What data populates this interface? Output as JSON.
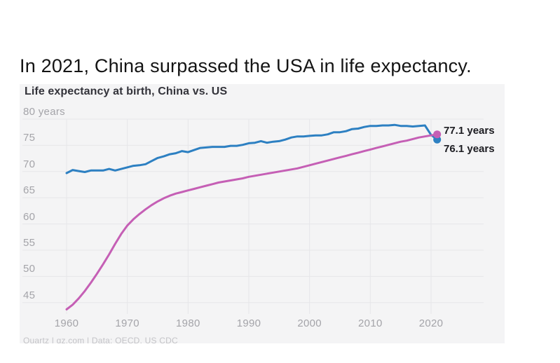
{
  "page": {
    "headline": "In 2021, China surpassed the USA in life expectancy."
  },
  "chart": {
    "title": "Life expectancy at birth, China vs. US",
    "y_axis_top_label": "80 years",
    "credit": "Quartz | qz.com | Data: OECD, US CDC",
    "end_labels": {
      "china": "77.1 years",
      "us": "76.1 years"
    },
    "colors": {
      "china_line": "#c55fb5",
      "us_line": "#2d80c2",
      "card_background": "#f4f4f5",
      "gridline": "#e6e6e9",
      "axis_text": "#a4a4a9",
      "end_label_text": "#1c1c21"
    }
  },
  "chart_data": {
    "type": "line",
    "title": "Life expectancy at birth, China vs. US",
    "xlabel": "",
    "ylabel": "years",
    "xticks": [
      1960,
      1970,
      1980,
      1990,
      2000,
      2010,
      2020
    ],
    "yticks": [
      45,
      50,
      55,
      60,
      65,
      70,
      75,
      80
    ],
    "ylim": [
      42.8,
      81
    ],
    "xlim": [
      1952.3,
      2027
    ],
    "grid": true,
    "legend_position": "end-of-line value labels",
    "x": [
      1960,
      1961,
      1962,
      1963,
      1964,
      1965,
      1966,
      1967,
      1968,
      1969,
      1970,
      1971,
      1972,
      1973,
      1974,
      1975,
      1976,
      1977,
      1978,
      1979,
      1980,
      1981,
      1982,
      1983,
      1984,
      1985,
      1986,
      1987,
      1988,
      1989,
      1990,
      1991,
      1992,
      1993,
      1994,
      1995,
      1996,
      1997,
      1998,
      1999,
      2000,
      2001,
      2002,
      2003,
      2004,
      2005,
      2006,
      2007,
      2008,
      2009,
      2010,
      2011,
      2012,
      2013,
      2014,
      2015,
      2016,
      2017,
      2018,
      2019,
      2020,
      2021
    ],
    "series": [
      {
        "name": "US",
        "color": "#2d80c2",
        "end_value": 76.1,
        "end_label": "76.1 years",
        "values": [
          69.7,
          70.3,
          70.1,
          69.9,
          70.2,
          70.2,
          70.2,
          70.5,
          70.2,
          70.5,
          70.8,
          71.1,
          71.2,
          71.4,
          72.0,
          72.6,
          72.9,
          73.3,
          73.5,
          73.9,
          73.7,
          74.1,
          74.5,
          74.6,
          74.7,
          74.7,
          74.7,
          74.9,
          74.9,
          75.1,
          75.4,
          75.5,
          75.8,
          75.5,
          75.7,
          75.8,
          76.1,
          76.5,
          76.7,
          76.7,
          76.8,
          76.9,
          76.9,
          77.1,
          77.5,
          77.5,
          77.7,
          78.1,
          78.2,
          78.5,
          78.7,
          78.7,
          78.8,
          78.8,
          78.9,
          78.7,
          78.7,
          78.6,
          78.7,
          78.8,
          77.0,
          76.1
        ]
      },
      {
        "name": "China",
        "color": "#c55fb5",
        "end_value": 77.1,
        "end_label": "77.1 years",
        "values": [
          43.7,
          44.6,
          45.8,
          47.2,
          48.8,
          50.5,
          52.3,
          54.2,
          56.2,
          58.1,
          59.7,
          60.9,
          61.9,
          62.8,
          63.6,
          64.3,
          64.9,
          65.4,
          65.8,
          66.1,
          66.4,
          66.7,
          67.0,
          67.3,
          67.6,
          67.9,
          68.1,
          68.3,
          68.5,
          68.7,
          69.0,
          69.2,
          69.4,
          69.6,
          69.8,
          70.0,
          70.2,
          70.4,
          70.6,
          70.9,
          71.2,
          71.5,
          71.8,
          72.1,
          72.4,
          72.7,
          73.0,
          73.3,
          73.6,
          73.9,
          74.2,
          74.5,
          74.8,
          75.1,
          75.4,
          75.7,
          75.9,
          76.2,
          76.5,
          76.7,
          76.9,
          77.1
        ]
      }
    ]
  }
}
